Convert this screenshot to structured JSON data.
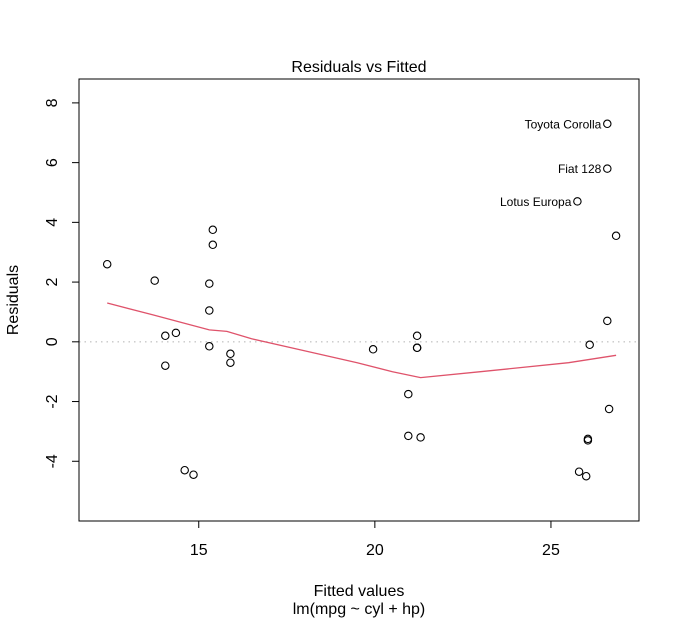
{
  "chart_data": {
    "type": "scatter",
    "title": "Residuals vs Fitted",
    "xlabel": "Fitted values",
    "subtitle": "lm(mpg ~ cyl + hp)",
    "ylabel": "Residuals",
    "xlim": [
      11.6,
      27.5
    ],
    "ylim": [
      -6.0,
      8.8
    ],
    "x_ticks": [
      15,
      20,
      25
    ],
    "y_ticks": [
      -4,
      -2,
      0,
      2,
      4,
      6,
      8
    ],
    "x_tick_labels": [
      "15",
      "20",
      "25"
    ],
    "y_tick_labels": [
      "-4",
      "-2",
      "0",
      "2",
      "4",
      "6",
      "8"
    ],
    "grid": false,
    "reference_line": {
      "y": 0,
      "style": "dotted",
      "color": "#c8c8c8"
    },
    "smoother_color": "#df536b",
    "points": [
      {
        "x": 12.4,
        "y": 2.6
      },
      {
        "x": 13.75,
        "y": 2.05
      },
      {
        "x": 14.05,
        "y": 0.2
      },
      {
        "x": 14.05,
        "y": -0.8
      },
      {
        "x": 14.35,
        "y": 0.3
      },
      {
        "x": 14.6,
        "y": -4.3
      },
      {
        "x": 14.85,
        "y": -4.45
      },
      {
        "x": 15.3,
        "y": 1.95
      },
      {
        "x": 15.3,
        "y": 1.05
      },
      {
        "x": 15.3,
        "y": -0.15
      },
      {
        "x": 15.4,
        "y": 3.75
      },
      {
        "x": 15.4,
        "y": 3.25
      },
      {
        "x": 15.9,
        "y": -0.4
      },
      {
        "x": 15.9,
        "y": -0.7
      },
      {
        "x": 19.95,
        "y": -0.25
      },
      {
        "x": 20.95,
        "y": -1.75
      },
      {
        "x": 20.95,
        "y": -3.15
      },
      {
        "x": 21.2,
        "y": 0.2
      },
      {
        "x": 21.2,
        "y": -0.2
      },
      {
        "x": 21.2,
        "y": -0.2
      },
      {
        "x": 21.3,
        "y": -3.2
      },
      {
        "x": 25.75,
        "y": 4.7
      },
      {
        "x": 25.8,
        "y": -4.35
      },
      {
        "x": 26.0,
        "y": -4.5
      },
      {
        "x": 26.05,
        "y": -3.25
      },
      {
        "x": 26.05,
        "y": -3.3
      },
      {
        "x": 26.1,
        "y": -0.1
      },
      {
        "x": 26.6,
        "y": 7.3
      },
      {
        "x": 26.6,
        "y": 5.8
      },
      {
        "x": 26.6,
        "y": 0.7
      },
      {
        "x": 26.65,
        "y": -2.25
      },
      {
        "x": 26.85,
        "y": 3.55
      }
    ],
    "smoother": {
      "x": [
        12.4,
        13.7,
        14.5,
        15.3,
        15.8,
        16.5,
        18.0,
        19.5,
        20.5,
        21.3,
        23.0,
        25.5,
        26.85
      ],
      "y": [
        1.3,
        0.9,
        0.65,
        0.4,
        0.35,
        0.1,
        -0.3,
        -0.7,
        -1.0,
        -1.2,
        -1.0,
        -0.7,
        -0.45
      ]
    },
    "annotations": [
      {
        "text": "Toyota Corolla",
        "x": 26.6,
        "y": 7.3
      },
      {
        "text": "Fiat 128",
        "x": 26.6,
        "y": 5.8
      },
      {
        "text": "Lotus Europa",
        "x": 25.75,
        "y": 4.7
      }
    ]
  }
}
